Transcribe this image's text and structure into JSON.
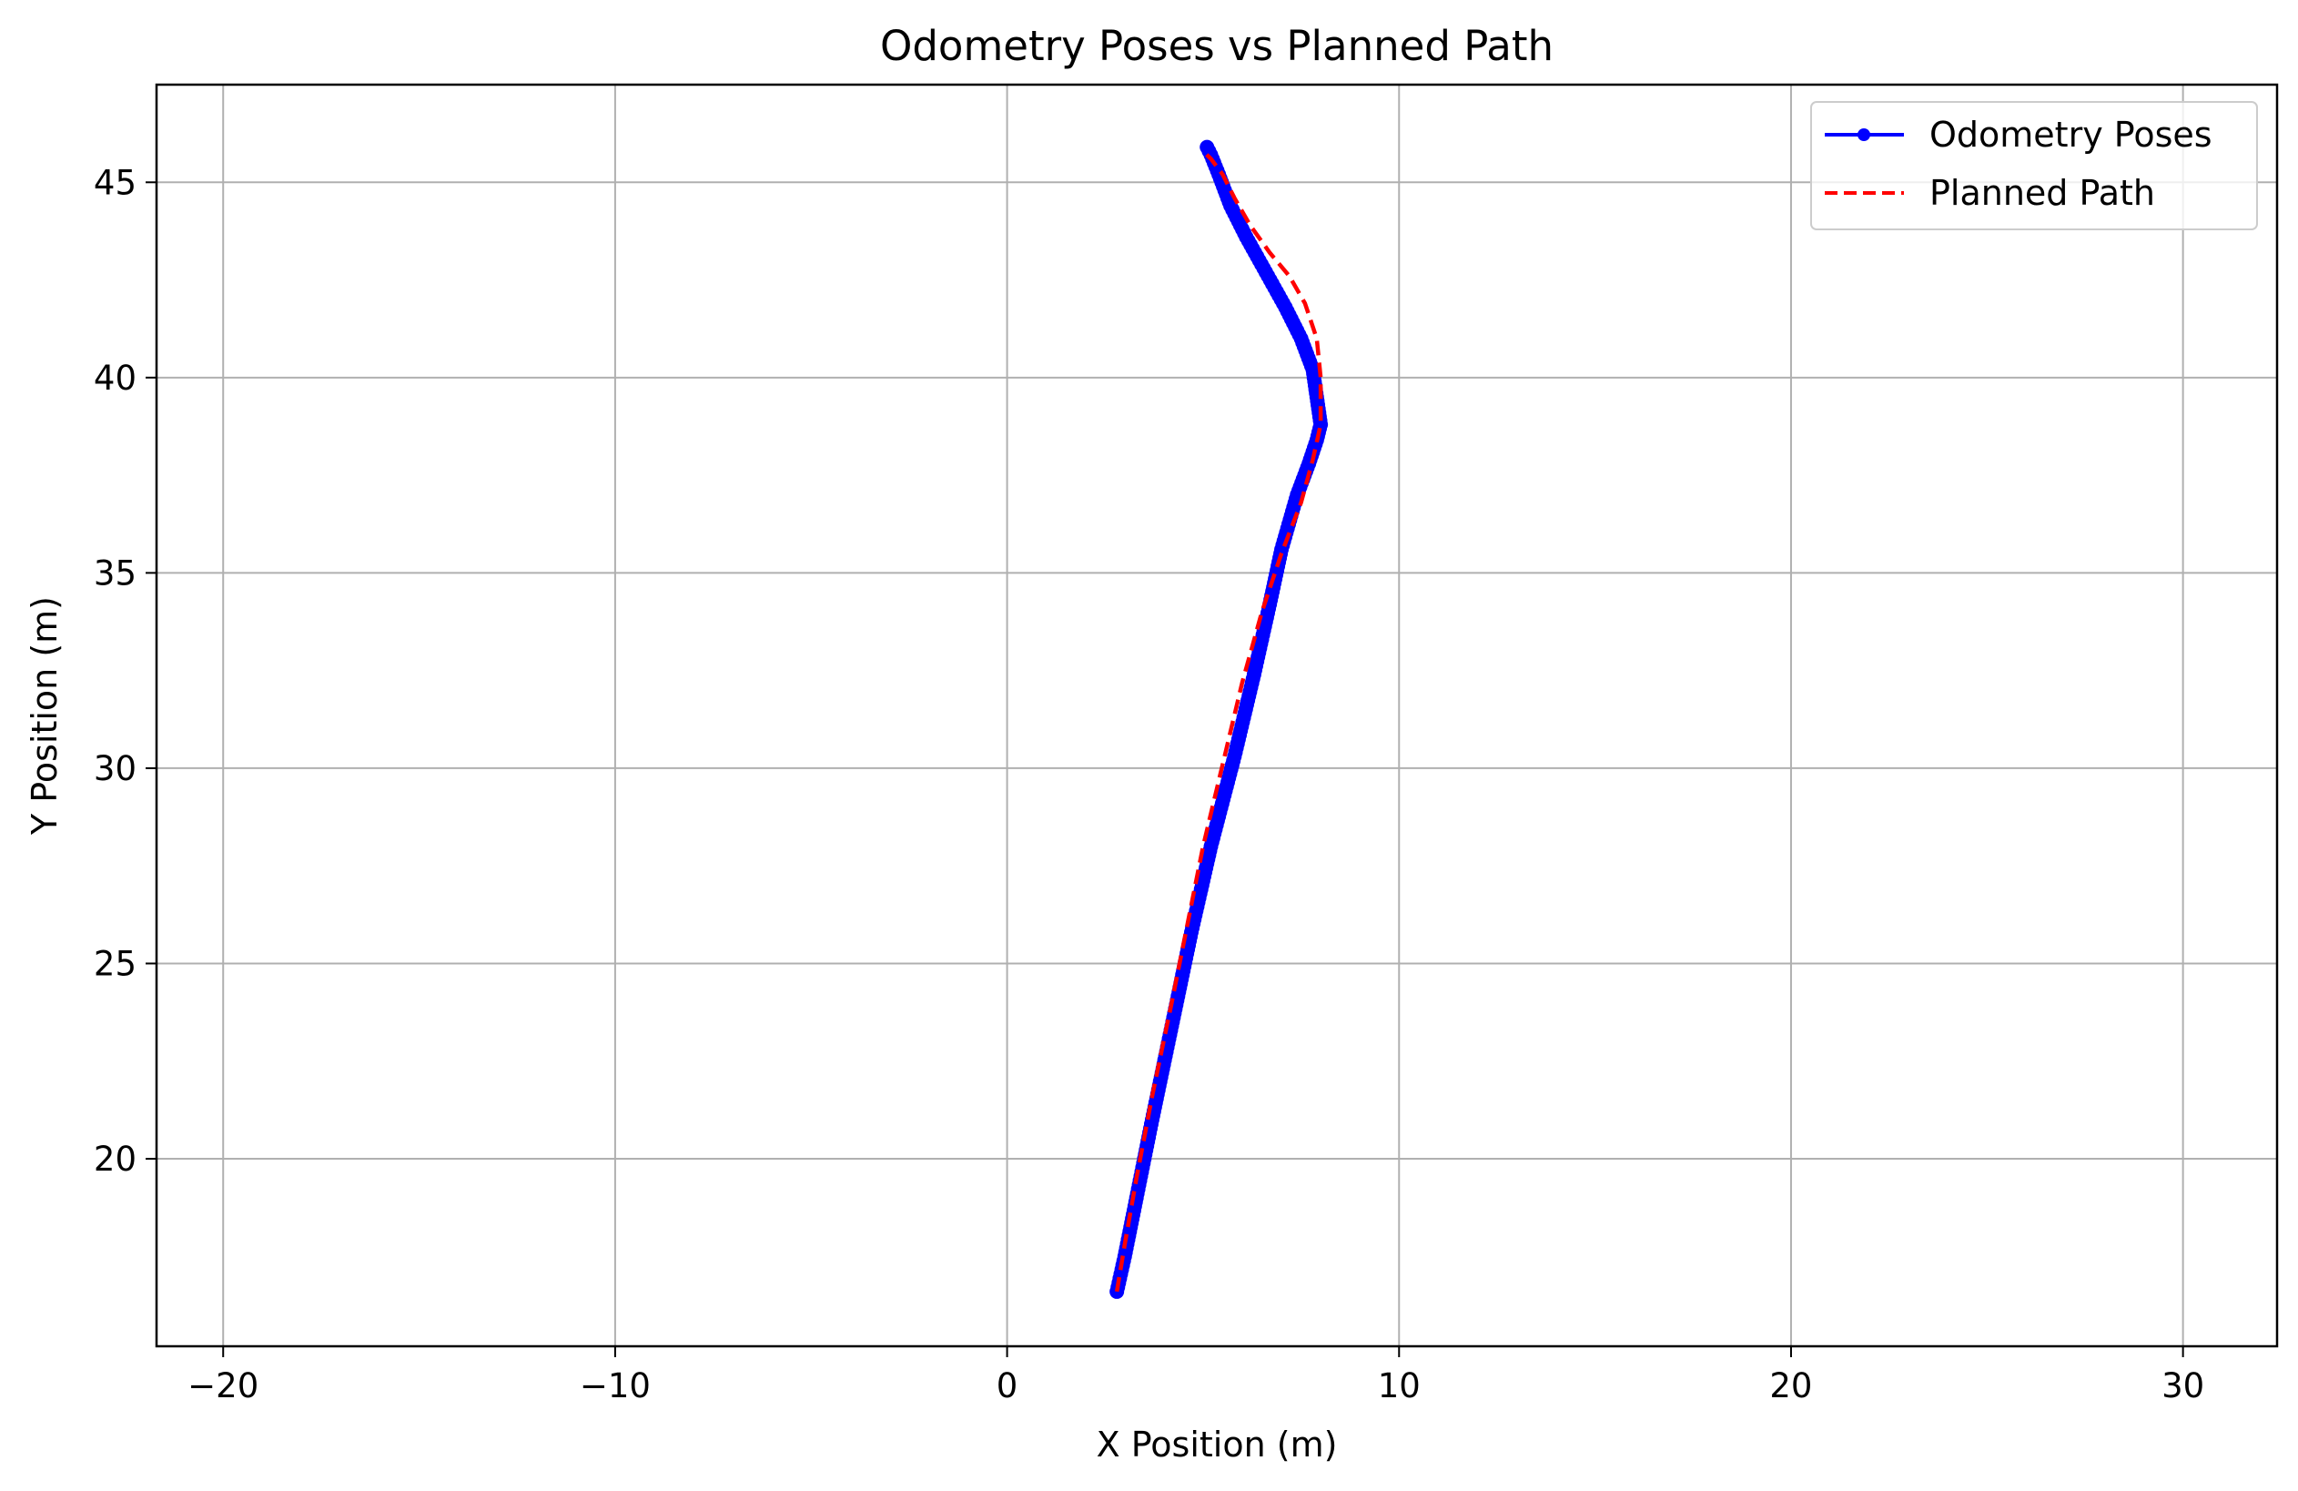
{
  "chart_data": {
    "type": "line",
    "title": "Odometry Poses vs Planned Path",
    "xlabel": "X Position (m)",
    "ylabel": "Y Position (m)",
    "xlim": [
      -21.7,
      32.4
    ],
    "ylim": [
      15.2,
      47.5
    ],
    "xticks": [
      -20,
      -10,
      0,
      10,
      20,
      30
    ],
    "xtick_labels": [
      "−20",
      "−10",
      "0",
      "10",
      "20",
      "30"
    ],
    "yticks": [
      20,
      25,
      30,
      35,
      40,
      45
    ],
    "ytick_labels": [
      "20",
      "25",
      "30",
      "35",
      "40",
      "45"
    ],
    "grid": true,
    "legend_position": "upper-right",
    "series": [
      {
        "name": "Odometry Poses",
        "color": "#0000ff",
        "style": "solid-with-markers",
        "x": [
          2.8,
          3.0,
          3.3,
          3.7,
          4.2,
          4.7,
          5.2,
          5.8,
          6.3,
          6.7,
          7.0,
          7.4,
          7.7,
          7.9,
          8.0,
          7.9,
          7.8,
          7.5,
          7.1,
          6.6,
          6.1,
          5.7,
          5.4,
          5.2,
          5.1
        ],
        "y": [
          16.6,
          17.5,
          19.0,
          21.0,
          23.4,
          25.8,
          28.0,
          30.3,
          32.4,
          34.2,
          35.6,
          37.0,
          37.8,
          38.4,
          38.8,
          39.5,
          40.2,
          41.0,
          41.8,
          42.7,
          43.6,
          44.4,
          45.2,
          45.7,
          45.9
        ]
      },
      {
        "name": "Planned Path",
        "color": "#ff0000",
        "style": "dashed",
        "x": [
          2.8,
          3.0,
          3.3,
          3.7,
          4.2,
          4.6,
          5.0,
          5.5,
          6.0,
          6.5,
          7.0,
          7.5,
          7.8,
          8.0,
          8.0,
          7.9,
          7.6,
          7.2,
          6.7,
          6.2,
          5.8,
          5.5,
          5.2,
          5.0
        ],
        "y": [
          16.6,
          17.8,
          19.5,
          21.6,
          24.0,
          26.0,
          28.0,
          30.1,
          32.2,
          34.0,
          35.5,
          36.8,
          37.9,
          38.8,
          40.0,
          41.0,
          41.9,
          42.6,
          43.2,
          43.9,
          44.6,
          45.2,
          45.6,
          45.8
        ]
      }
    ]
  }
}
